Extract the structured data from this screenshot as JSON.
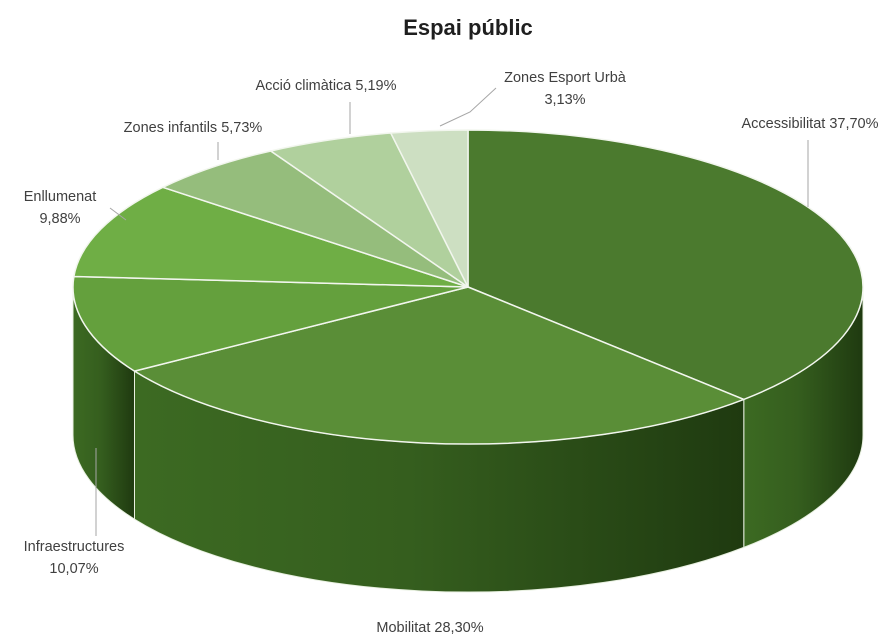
{
  "chart_data": {
    "type": "pie",
    "style": "3d",
    "title": "Espai públic",
    "slices": [
      {
        "label": "Accessibilitat",
        "value": 37.7,
        "display": "37,70%",
        "color": "#4b7a2e"
      },
      {
        "label": "Mobilitat",
        "value": 28.3,
        "display": "28,30%",
        "color": "#5a8e37"
      },
      {
        "label": "Infraestructures",
        "value": 10.07,
        "display": "10,07%",
        "color": "#64a03d"
      },
      {
        "label": "Enllumenat",
        "value": 9.88,
        "display": "9,88%",
        "color": "#6fae45"
      },
      {
        "label": "Zones infantils",
        "value": 5.73,
        "display": "5,73%",
        "color": "#95bd7c"
      },
      {
        "label": "Acció climàtica",
        "value": 5.19,
        "display": "5,19%",
        "color": "#b0d09d"
      },
      {
        "label": "Zones Esport Urbà",
        "value": 3.13,
        "display": "3,13%",
        "color": "#cddfc2"
      }
    ],
    "legend": "none"
  }
}
